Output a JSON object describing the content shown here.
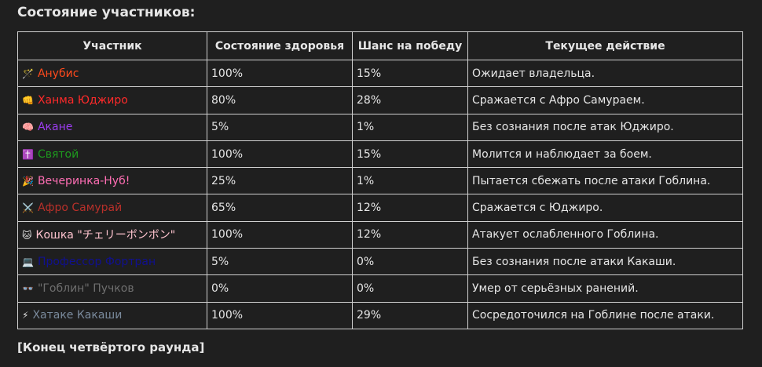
{
  "title": "Состояние участников:",
  "table": {
    "header": [
      "Участник",
      "Состояние здоровья",
      "Шанс на победу",
      "Текущее действие"
    ],
    "rows": [
      {
        "icon": "🪄",
        "name": "Анубис",
        "color": "#ff4a1c",
        "health": "100%",
        "chance": "15%",
        "action": "Ожидает владельца."
      },
      {
        "icon": "👊",
        "name": "Ханма Юджиро",
        "color": "#ff2a2a",
        "health": "80%",
        "chance": "28%",
        "action": "Сражается с Афро Самураем."
      },
      {
        "icon": "🧠",
        "name": "Акане",
        "color": "#9b3cf0",
        "health": "5%",
        "chance": "1%",
        "action": "Без сознания после атак Юджиро."
      },
      {
        "icon": "✝️",
        "name": "Святой",
        "color": "#1e9a1e",
        "health": "100%",
        "chance": "15%",
        "action": "Молится и наблюдает за боем."
      },
      {
        "icon": "🎉",
        "name": "Вечеринка-Нуб!",
        "color": "#ff6eb4",
        "health": "25%",
        "chance": "1%",
        "action": "Пытается сбежать после атаки Гоблина."
      },
      {
        "icon": "⚔️",
        "name": "Афро Самурай",
        "color": "#b8302a",
        "health": "65%",
        "chance": "12%",
        "action": "Сражается с Юджиро."
      },
      {
        "icon": "🐱",
        "name": "Кошка \"チェリーボンボン\"",
        "color": "#ffc4cf",
        "health": "100%",
        "chance": "12%",
        "action": "Атакует ослабленного Гоблина."
      },
      {
        "icon": "💻",
        "name": "Профессор Фортран",
        "color": "#101090",
        "health": "5%",
        "chance": "0%",
        "action": "Без сознания после атаки Какаши."
      },
      {
        "icon": "👓",
        "name": "\"Гоблин\" Пучков",
        "color": "#6e6e6e",
        "health": "0%",
        "chance": "0%",
        "action": "Умер от серьёзных ранений."
      },
      {
        "icon": "⚡",
        "name": "Хатаке Какаши",
        "color": "#7a8a9c",
        "health": "100%",
        "chance": "29%",
        "action": "Сосредоточился на Гоблине после атаки."
      }
    ]
  },
  "footer": "[Конец четвёртого раунда]"
}
